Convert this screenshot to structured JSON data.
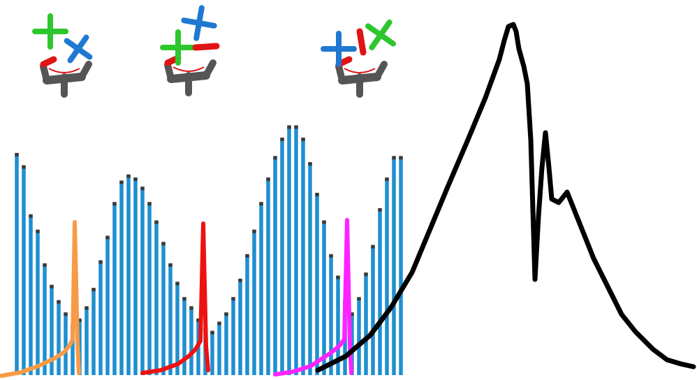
{
  "figure": {
    "bar_series": {
      "color": "#1f8fd1",
      "shadow_color": "#3a3a3a",
      "values": [
        0.72,
        0.68,
        0.52,
        0.47,
        0.36,
        0.29,
        0.24,
        0.2,
        0.16,
        0.18,
        0.22,
        0.28,
        0.37,
        0.45,
        0.56,
        0.63,
        0.65,
        0.64,
        0.61,
        0.56,
        0.5,
        0.43,
        0.36,
        0.3,
        0.25,
        0.22,
        0.18,
        0.15,
        0.14,
        0.17,
        0.2,
        0.25,
        0.31,
        0.39,
        0.47,
        0.56,
        0.64,
        0.71,
        0.77,
        0.81,
        0.81,
        0.77,
        0.69,
        0.59,
        0.5,
        0.39,
        0.32,
        0.24,
        0.2,
        0.25,
        0.33,
        0.42,
        0.54,
        0.64,
        0.71,
        0.71
      ]
    },
    "spikes": [
      {
        "name": "orange",
        "color": "#f79b47"
      },
      {
        "name": "red",
        "color": "#ee1111"
      },
      {
        "name": "magenta",
        "color": "#ff22ff"
      }
    ],
    "envelope": {
      "color": "#000000"
    },
    "molecules": [
      {
        "name": "left",
        "top_color": "#22c522"
      },
      {
        "name": "middle",
        "top_color": "#1f7ad6"
      },
      {
        "name": "right",
        "top_color": "#1f7ad6"
      }
    ],
    "molecule_palette": {
      "green": "#2ec62e",
      "blue": "#1f78d1",
      "red": "#e01414",
      "gray": "#555555",
      "arc": "#e01414"
    }
  }
}
